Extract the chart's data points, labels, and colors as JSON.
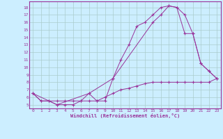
{
  "xlabel": "Windchill (Refroidissement éolien,°C)",
  "background_color": "#cceeff",
  "grid_color": "#aacccc",
  "line_color": "#993399",
  "xlim": [
    -0.5,
    23.5
  ],
  "ylim": [
    4.5,
    18.8
  ],
  "yticks": [
    5,
    6,
    7,
    8,
    9,
    10,
    11,
    12,
    13,
    14,
    15,
    16,
    17,
    18
  ],
  "xticks": [
    0,
    1,
    2,
    3,
    4,
    5,
    6,
    7,
    8,
    9,
    10,
    11,
    12,
    13,
    14,
    15,
    16,
    17,
    18,
    19,
    20,
    21,
    22,
    23
  ],
  "line1_x": [
    0,
    1,
    2,
    3,
    4,
    5,
    6,
    7,
    8,
    9,
    10,
    11,
    12,
    13,
    14,
    15,
    16,
    17,
    18,
    19,
    20,
    21,
    22,
    23
  ],
  "line1_y": [
    6.5,
    5.5,
    5.5,
    5.0,
    5.0,
    5.0,
    5.5,
    6.5,
    5.5,
    5.5,
    8.5,
    11.0,
    13.0,
    15.5,
    16.0,
    17.0,
    18.0,
    18.2,
    18.0,
    17.0,
    14.5,
    10.5,
    9.5,
    8.5
  ],
  "line2_x": [
    0,
    3,
    7,
    10,
    15,
    16,
    17,
    18,
    19,
    20,
    21,
    22,
    23
  ],
  "line2_y": [
    6.5,
    5.0,
    6.5,
    8.5,
    16.0,
    17.0,
    18.2,
    18.0,
    14.5,
    14.5,
    10.5,
    9.5,
    8.5
  ],
  "line3_x": [
    0,
    1,
    2,
    3,
    4,
    5,
    6,
    7,
    8,
    9,
    10,
    11,
    12,
    13,
    14,
    15,
    16,
    17,
    18,
    19,
    20,
    21,
    22,
    23
  ],
  "line3_y": [
    6.5,
    5.5,
    5.5,
    5.5,
    5.5,
    5.5,
    5.5,
    5.5,
    5.5,
    6.0,
    6.5,
    7.0,
    7.2,
    7.5,
    7.8,
    8.0,
    8.0,
    8.0,
    8.0,
    8.0,
    8.0,
    8.0,
    8.0,
    8.5
  ]
}
